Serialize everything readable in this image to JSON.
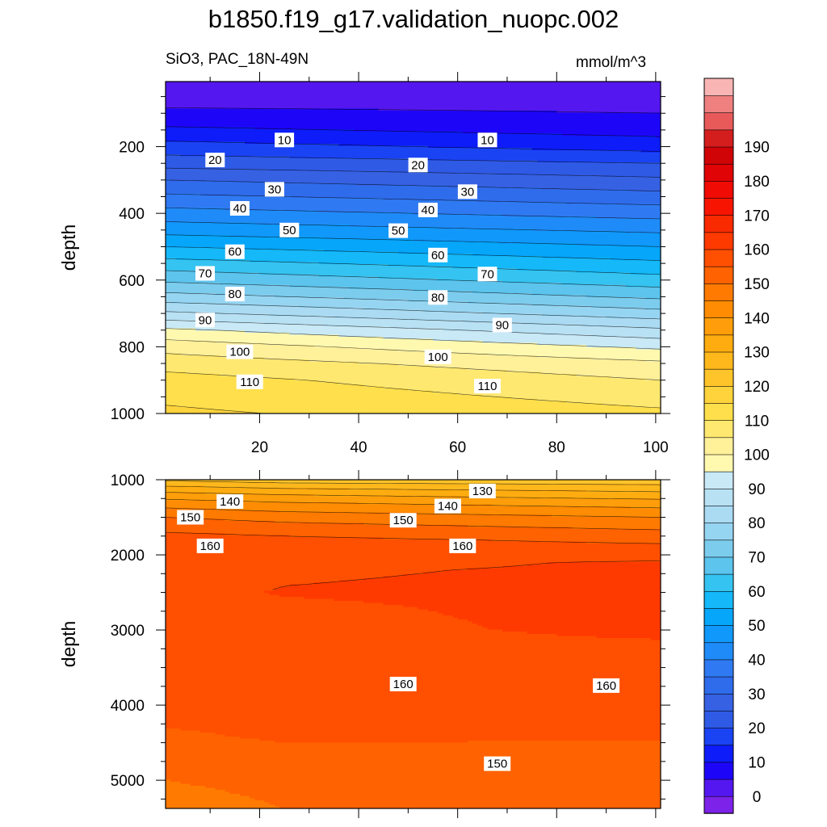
{
  "title": "b1850.f19_g17.validation_nuopc.002",
  "subtitle_left": "SiO3, PAC_18N-49N",
  "units": "mmol/m^3",
  "colors": {
    "background": "#ffffff",
    "frame": "#000000",
    "contour_line": "#000000"
  },
  "chart_data": [
    {
      "type": "heatmap",
      "panel": "upper",
      "ylabel": "depth",
      "xlabel": "",
      "xlim": [
        1,
        101
      ],
      "ylim": [
        1000,
        5
      ],
      "y_inverted": true,
      "xticks": [
        20,
        40,
        60,
        80,
        100
      ],
      "yticks": [
        200,
        400,
        600,
        800,
        1000
      ],
      "contour_levels": [
        0,
        5,
        10,
        15,
        20,
        25,
        30,
        35,
        40,
        45,
        50,
        55,
        60,
        65,
        70,
        75,
        80,
        85,
        90,
        95,
        100,
        105,
        110,
        115,
        120
      ],
      "profiles_x": [
        1,
        101
      ],
      "profiles": [
        {
          "x": 1,
          "depth": [
            5,
            50,
            100,
            150,
            200,
            250,
            300,
            350,
            400,
            450,
            500,
            550,
            600,
            650,
            700,
            750,
            800,
            850,
            900,
            950,
            1000
          ],
          "value": [
            2,
            3,
            6,
            11,
            17,
            23,
            30,
            36,
            42,
            48,
            55,
            62,
            69,
            77,
            86,
            96,
            103,
            108,
            112,
            114,
            116
          ]
        },
        {
          "x": 101,
          "depth": [
            5,
            50,
            100,
            150,
            200,
            250,
            300,
            350,
            400,
            450,
            500,
            550,
            600,
            650,
            700,
            750,
            800,
            850,
            900,
            950,
            1000
          ],
          "value": [
            2,
            3,
            5,
            8,
            13,
            20,
            26,
            32,
            38,
            44,
            50,
            56,
            62,
            69,
            77,
            86,
            94,
            101,
            105,
            108,
            111
          ]
        }
      ],
      "contour_labels": [
        {
          "text": "10",
          "x": 25,
          "depth": 180
        },
        {
          "text": "10",
          "x": 66,
          "depth": 180
        },
        {
          "text": "20",
          "x": 11,
          "depth": 240
        },
        {
          "text": "20",
          "x": 52,
          "depth": 255
        },
        {
          "text": "30",
          "x": 23,
          "depth": 328
        },
        {
          "text": "30",
          "x": 62,
          "depth": 335
        },
        {
          "text": "40",
          "x": 16,
          "depth": 385
        },
        {
          "text": "40",
          "x": 54,
          "depth": 390
        },
        {
          "text": "50",
          "x": 26,
          "depth": 450
        },
        {
          "text": "50",
          "x": 48,
          "depth": 452
        },
        {
          "text": "60",
          "x": 15,
          "depth": 515
        },
        {
          "text": "60",
          "x": 56,
          "depth": 525
        },
        {
          "text": "70",
          "x": 9,
          "depth": 580
        },
        {
          "text": "70",
          "x": 66,
          "depth": 582
        },
        {
          "text": "80",
          "x": 15,
          "depth": 642
        },
        {
          "text": "80",
          "x": 56,
          "depth": 652
        },
        {
          "text": "90",
          "x": 9,
          "depth": 720
        },
        {
          "text": "90",
          "x": 69,
          "depth": 735
        },
        {
          "text": "100",
          "x": 16,
          "depth": 815
        },
        {
          "text": "100",
          "x": 56,
          "depth": 830
        },
        {
          "text": "110",
          "x": 18,
          "depth": 905
        },
        {
          "text": "110",
          "x": 66,
          "depth": 918
        }
      ]
    },
    {
      "type": "heatmap",
      "panel": "lower",
      "ylabel": "depth",
      "xlabel": "",
      "xlim": [
        1,
        101
      ],
      "ylim": [
        5375,
        1000
      ],
      "y_inverted": true,
      "yticks": [
        1000,
        2000,
        3000,
        4000,
        5000
      ],
      "contour_levels": [
        125,
        130,
        135,
        140,
        145,
        150,
        155,
        160,
        165
      ],
      "profiles_x": [
        1,
        25,
        101
      ],
      "profiles": [
        {
          "x": 1,
          "depth": [
            1000,
            1100,
            1200,
            1300,
            1400,
            1500,
            1600,
            1700,
            1800,
            2000,
            2500,
            3000,
            3500,
            4000,
            4400,
            4700,
            5000,
            5375
          ],
          "value": [
            124,
            131,
            137,
            142,
            146,
            150,
            153,
            155,
            157,
            158,
            159,
            159,
            159,
            158,
            154,
            152,
            150,
            147
          ]
        },
        {
          "x": 25,
          "depth": [
            1000,
            1100,
            1200,
            1300,
            1400,
            1500,
            1600,
            1700,
            1800,
            2000,
            2200,
            2500,
            2700,
            3000,
            3500,
            4000,
            4400,
            4700,
            5000,
            5375
          ],
          "value": [
            122,
            129,
            135,
            140,
            144,
            148,
            151,
            154,
            156,
            158,
            159.5,
            160.2,
            159.5,
            159,
            159,
            158,
            156,
            153,
            152,
            150
          ]
        },
        {
          "x": 101,
          "depth": [
            1000,
            1100,
            1200,
            1300,
            1400,
            1500,
            1600,
            1700,
            1800,
            2000,
            2100,
            2500,
            3000,
            3200,
            3500,
            4000,
            4200,
            4600,
            4900,
            5375
          ],
          "value": [
            121,
            127,
            132,
            137,
            141,
            145,
            148,
            151,
            154,
            158,
            160.5,
            161,
            160.8,
            159.5,
            159,
            159,
            157,
            154,
            152.5,
            152.5
          ]
        }
      ],
      "contour_labels": [
        {
          "text": "140",
          "x": 14,
          "depth": 1290
        },
        {
          "text": "150",
          "x": 6,
          "depth": 1500
        },
        {
          "text": "150",
          "x": 49,
          "depth": 1540
        },
        {
          "text": "140",
          "x": 58,
          "depth": 1350
        },
        {
          "text": "130",
          "x": 65,
          "depth": 1150
        },
        {
          "text": "160",
          "x": 10,
          "depth": 1880
        },
        {
          "text": "160",
          "x": 61,
          "depth": 1880
        },
        {
          "text": "160",
          "x": 49,
          "depth": 3720
        },
        {
          "text": "160",
          "x": 90,
          "depth": 3740
        },
        {
          "text": "150",
          "x": 68,
          "depth": 4780
        }
      ]
    }
  ],
  "colorbar": {
    "label_values": [
      "0",
      "10",
      "20",
      "30",
      "40",
      "50",
      "60",
      "70",
      "80",
      "90",
      "100",
      "110",
      "120",
      "130",
      "140",
      "150",
      "160",
      "170",
      "180",
      "190"
    ],
    "colors": [
      "#7d22e8",
      "#5417f0",
      "#1d06f8",
      "#0d1cf8",
      "#1a43f4",
      "#2f5ae6",
      "#3661e3",
      "#2f6cec",
      "#2f7af2",
      "#1f8bf8",
      "#1098fa",
      "#06a6fb",
      "#15b8f8",
      "#35c3f1",
      "#5cc4ed",
      "#7cccee",
      "#96d5f2",
      "#aadbf3",
      "#b8e1f4",
      "#c8e9f5",
      "#fff9b0",
      "#fff09a",
      "#ffe870",
      "#ffdf4b",
      "#ffd33c",
      "#ffc42a",
      "#ffb81c",
      "#ffac10",
      "#ff9e0a",
      "#ff8c02",
      "#ff7a00",
      "#ff6200",
      "#ff4f00",
      "#ff3a00",
      "#fa2a00",
      "#f71502",
      "#f00b04",
      "#e00406",
      "#d00406",
      "#d41e1e",
      "#e85a5a",
      "#ef8080",
      "#f9b4b4"
    ]
  }
}
